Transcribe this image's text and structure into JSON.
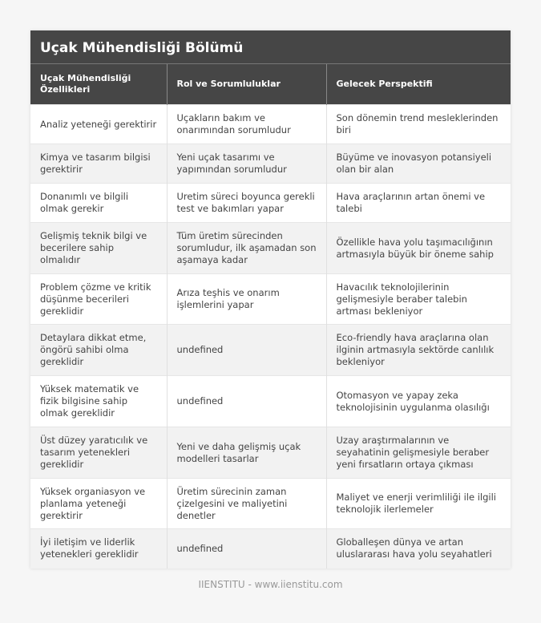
{
  "title": "Uçak Mühendisliği Bölümü",
  "headers": [
    "Uçak Mühendisliği Özellikleri",
    "Rol ve Sorumluluklar",
    "Gelecek Perspektifi"
  ],
  "rows": [
    [
      "Analiz yeteneği gerektirir",
      "Uçakların bakım ve onarımından sorumludur",
      "Son dönemin trend mesleklerinden biri"
    ],
    [
      "Kimya ve tasarım bilgisi gerektirir",
      "Yeni uçak tasarımı ve yapımından sorumludur",
      "Büyüme ve inovasyon potansiyeli olan bir alan"
    ],
    [
      "Donanımlı ve bilgili olmak gerekir",
      "Uretim süreci boyunca gerekli test ve bakımları yapar",
      "Hava araçlarının artan önemi ve talebi"
    ],
    [
      "Gelişmiş teknik bilgi ve becerilere sahip olmalıdır",
      "Tüm üretim sürecinden sorumludur, ilk aşamadan son aşamaya kadar",
      "Özellikle hava yolu taşımacılığının artmasıyla büyük bir öneme sahip"
    ],
    [
      "Problem çözme ve kritik düşünme becerileri gereklidir",
      "Arıza teşhis ve onarım işlemlerini yapar",
      "Havacılık teknolojilerinin gelişmesiyle beraber talebin artması bekleniyor"
    ],
    [
      "Detaylara dikkat etme, öngörü sahibi olma gereklidir",
      "undefined",
      "Eco-friendly hava araçlarına olan ilginin artmasıyla sektörde canlılık bekleniyor"
    ],
    [
      "Yüksek matematik ve fizik bilgisine sahip olmak gereklidir",
      "undefined",
      "Otomasyon ve yapay zeka teknolojisinin uygulanma olasılığı"
    ],
    [
      "Üst düzey yaratıcılık ve tasarım yetenekleri gereklidir",
      "Yeni ve daha gelişmiş uçak modelleri tasarlar",
      "Uzay araştırmalarının ve seyahatinin gelişmesiyle beraber yeni fırsatların ortaya çıkması"
    ],
    [
      "Yüksek organiasyon ve planlama yeteneği gerektirir",
      "Üretim sürecinin zaman çizelgesini ve maliyetini denetler",
      "Maliyet ve enerji verimliliği ile ilgili teknolojik ilerlemeler"
    ],
    [
      "İyi iletişim ve liderlik yetenekleri gereklidir",
      "undefined",
      "Globalleşen dünya ve artan uluslararası hava yolu seyahatleri"
    ]
  ],
  "footer": "IIENSTITU - www.iienstitu.com"
}
